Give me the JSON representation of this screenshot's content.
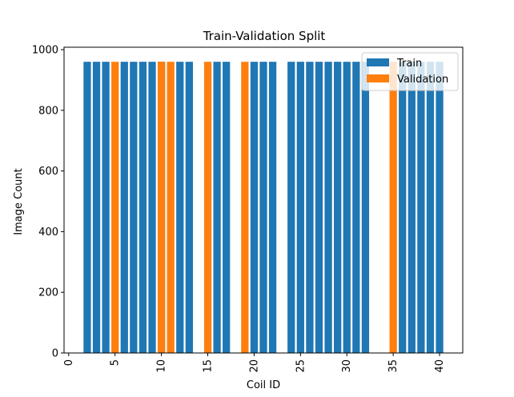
{
  "chart_data": {
    "type": "bar",
    "title": "Train-Validation Split",
    "xlabel": "Coil ID",
    "ylabel": "Image Count",
    "xlim": [
      -0.5,
      42.5
    ],
    "ylim": [
      0,
      1008
    ],
    "xticks": [
      0,
      5,
      10,
      15,
      20,
      25,
      30,
      35,
      40
    ],
    "yticks": [
      0,
      200,
      400,
      600,
      800,
      1000
    ],
    "legend_position": "top-right",
    "grid": false,
    "colors": {
      "Train": "#1f77b4",
      "Validation": "#ff7f0e"
    },
    "series": [
      {
        "name": "Train",
        "x": [
          2,
          3,
          4,
          6,
          7,
          8,
          9,
          10,
          12,
          13,
          16,
          17,
          20,
          21,
          22,
          24,
          25,
          26,
          27,
          28,
          29,
          30,
          31,
          32,
          36,
          37,
          38,
          39,
          40
        ],
        "values": [
          960,
          960,
          960,
          960,
          960,
          960,
          960,
          960,
          960,
          960,
          960,
          960,
          960,
          960,
          960,
          960,
          960,
          960,
          960,
          960,
          960,
          960,
          960,
          960,
          960,
          960,
          960,
          960,
          960
        ]
      },
      {
        "name": "Validation",
        "x": [
          5,
          10,
          11,
          15,
          19,
          35
        ],
        "values": [
          960,
          960,
          960,
          960,
          960,
          960
        ]
      }
    ]
  }
}
